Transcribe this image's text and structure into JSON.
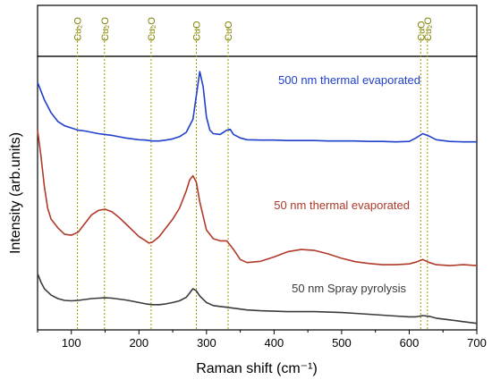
{
  "chart_data": {
    "type": "line",
    "xlabel": "Raman shift (cm⁻¹)",
    "ylabel": "Intensity (arb.units)",
    "xlim": [
      50,
      700
    ],
    "x_ticks": [
      "100",
      "200",
      "300",
      "400",
      "500",
      "600",
      "700"
    ],
    "y_ticks_labeled": false,
    "grid": false,
    "peak_markers": [
      {
        "x": 109,
        "label": "Cu₂O"
      },
      {
        "x": 149,
        "label": "Cu₂O"
      },
      {
        "x": 218,
        "label": "Cu₂O"
      },
      {
        "x": 285,
        "label": "CuO"
      },
      {
        "x": 332,
        "label": "CuO"
      },
      {
        "x": 617,
        "label": "CuO"
      },
      {
        "x": 627,
        "label": "Cu₂O"
      }
    ],
    "series": [
      {
        "name": "500 nm thermal evaporated",
        "color": "#1f3fcc",
        "x": [
          50,
          60,
          70,
          80,
          90,
          100,
          110,
          120,
          130,
          140,
          150,
          160,
          170,
          180,
          190,
          200,
          210,
          220,
          230,
          240,
          250,
          260,
          270,
          280,
          285,
          290,
          295,
          300,
          305,
          310,
          320,
          330,
          335,
          340,
          350,
          360,
          380,
          400,
          420,
          440,
          460,
          480,
          500,
          520,
          540,
          560,
          580,
          600,
          610,
          620,
          630,
          640,
          660,
          680,
          700
        ],
        "y": [
          5.7,
          5.3,
          5.0,
          4.8,
          4.7,
          4.65,
          4.6,
          4.58,
          4.55,
          4.52,
          4.5,
          4.48,
          4.45,
          4.42,
          4.4,
          4.38,
          4.37,
          4.35,
          4.35,
          4.37,
          4.4,
          4.45,
          4.55,
          4.85,
          5.4,
          5.95,
          5.6,
          4.9,
          4.6,
          4.52,
          4.5,
          4.6,
          4.62,
          4.5,
          4.42,
          4.38,
          4.37,
          4.37,
          4.36,
          4.36,
          4.36,
          4.35,
          4.35,
          4.35,
          4.34,
          4.34,
          4.33,
          4.34,
          4.42,
          4.52,
          4.46,
          4.38,
          4.34,
          4.33,
          4.33
        ]
      },
      {
        "name": "50 nm thermal evaporated",
        "color": "#b0392a",
        "x": [
          50,
          55,
          60,
          65,
          70,
          80,
          90,
          100,
          110,
          120,
          130,
          140,
          150,
          160,
          170,
          180,
          190,
          200,
          210,
          215,
          220,
          230,
          240,
          250,
          260,
          270,
          275,
          280,
          285,
          290,
          300,
          310,
          320,
          330,
          340,
          350,
          360,
          380,
          400,
          420,
          440,
          460,
          480,
          500,
          520,
          540,
          560,
          580,
          600,
          610,
          620,
          630,
          640,
          660,
          680,
          700
        ],
        "y": [
          4.6,
          4.0,
          3.3,
          2.8,
          2.55,
          2.35,
          2.2,
          2.18,
          2.25,
          2.45,
          2.65,
          2.75,
          2.78,
          2.72,
          2.6,
          2.45,
          2.3,
          2.15,
          2.05,
          2.0,
          2.02,
          2.15,
          2.35,
          2.55,
          2.8,
          3.2,
          3.45,
          3.55,
          3.4,
          2.95,
          2.3,
          2.1,
          2.05,
          2.05,
          1.85,
          1.62,
          1.55,
          1.58,
          1.68,
          1.8,
          1.85,
          1.83,
          1.75,
          1.65,
          1.57,
          1.53,
          1.5,
          1.5,
          1.52,
          1.56,
          1.62,
          1.55,
          1.5,
          1.48,
          1.5,
          1.48
        ]
      },
      {
        "name": "50 nm Spray pyrolysis",
        "color": "#3a3a3a",
        "x": [
          50,
          55,
          60,
          70,
          80,
          90,
          100,
          110,
          120,
          130,
          140,
          150,
          160,
          170,
          180,
          190,
          200,
          210,
          220,
          230,
          240,
          250,
          260,
          270,
          275,
          280,
          285,
          290,
          300,
          310,
          320,
          330,
          340,
          350,
          360,
          380,
          400,
          420,
          440,
          460,
          480,
          500,
          520,
          540,
          560,
          580,
          600,
          610,
          620,
          630,
          640,
          660,
          680,
          700
        ],
        "y": [
          1.3,
          1.1,
          0.95,
          0.8,
          0.72,
          0.68,
          0.67,
          0.68,
          0.7,
          0.72,
          0.73,
          0.74,
          0.73,
          0.71,
          0.69,
          0.66,
          0.63,
          0.6,
          0.58,
          0.58,
          0.6,
          0.63,
          0.67,
          0.75,
          0.85,
          0.95,
          0.9,
          0.78,
          0.63,
          0.56,
          0.54,
          0.52,
          0.5,
          0.48,
          0.46,
          0.44,
          0.43,
          0.42,
          0.42,
          0.42,
          0.41,
          0.4,
          0.38,
          0.36,
          0.34,
          0.32,
          0.3,
          0.3,
          0.33,
          0.31,
          0.27,
          0.23,
          0.19,
          0.15
        ]
      }
    ]
  }
}
